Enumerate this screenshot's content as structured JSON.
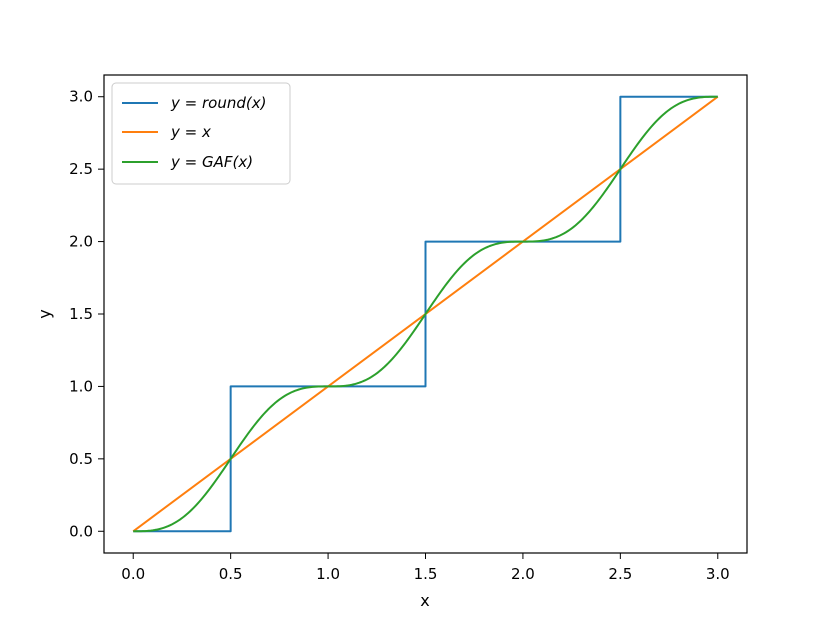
{
  "chart_data": {
    "type": "line",
    "title": "",
    "xlabel": "x",
    "ylabel": "y",
    "xlim": [
      -0.15,
      3.15
    ],
    "ylim": [
      -0.15,
      3.15
    ],
    "xticks": [
      0.0,
      0.5,
      1.0,
      1.5,
      2.0,
      2.5,
      3.0
    ],
    "yticks": [
      0.0,
      0.5,
      1.0,
      1.5,
      2.0,
      2.5,
      3.0
    ],
    "xtick_labels": [
      "0.0",
      "0.5",
      "1.0",
      "1.5",
      "2.0",
      "2.5",
      "3.0"
    ],
    "ytick_labels": [
      "0.0",
      "0.5",
      "1.0",
      "1.5",
      "2.0",
      "2.5",
      "3.0"
    ],
    "grid": false,
    "legend_position": "top-left",
    "series": [
      {
        "name": "y = round(x)",
        "color": "#1f77b4",
        "x": [
          0.0,
          0.5,
          0.5,
          1.5,
          1.5,
          2.5,
          2.5,
          3.0
        ],
        "y": [
          0.0,
          0.0,
          1.0,
          1.0,
          2.0,
          2.0,
          3.0,
          3.0
        ]
      },
      {
        "name": "y = x",
        "color": "#ff7f0e",
        "x": [
          0.0,
          3.0
        ],
        "y": [
          0.0,
          3.0
        ]
      },
      {
        "name": "y = GAF(x)",
        "color": "#2ca02c",
        "x": [
          0.0,
          0.125,
          0.25,
          0.375,
          0.5,
          0.625,
          0.75,
          0.875,
          1.0,
          1.125,
          1.25,
          1.375,
          1.5,
          1.625,
          1.75,
          1.875,
          2.0,
          2.125,
          2.25,
          2.375,
          2.5,
          2.625,
          2.75,
          2.875,
          3.0
        ],
        "y": [
          0.0,
          0.011,
          0.091,
          0.271,
          0.5,
          0.729,
          0.909,
          0.989,
          1.0,
          1.011,
          1.091,
          1.271,
          1.5,
          1.729,
          1.909,
          1.989,
          2.0,
          2.011,
          2.091,
          2.271,
          2.5,
          2.729,
          2.909,
          2.989,
          3.0
        ]
      }
    ]
  }
}
